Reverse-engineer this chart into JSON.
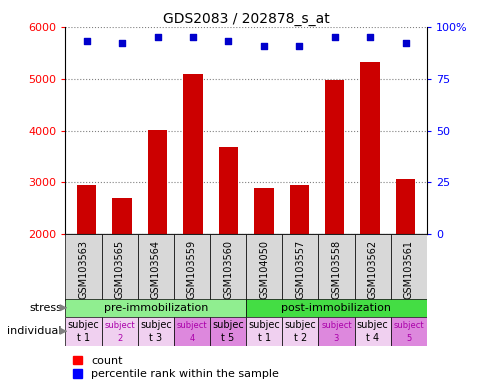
{
  "title": "GDS2083 / 202878_s_at",
  "samples": [
    "GSM103563",
    "GSM103565",
    "GSM103564",
    "GSM103559",
    "GSM103560",
    "GSM104050",
    "GSM103557",
    "GSM103558",
    "GSM103562",
    "GSM103561"
  ],
  "counts": [
    2950,
    2700,
    4020,
    5100,
    3680,
    2900,
    2950,
    4980,
    5330,
    3060
  ],
  "percentile_ranks": [
    93,
    92,
    95,
    95,
    93,
    91,
    91,
    95,
    95,
    92
  ],
  "ylim_left": [
    2000,
    6000
  ],
  "ylim_right": [
    0,
    100
  ],
  "yticks_left": [
    2000,
    3000,
    4000,
    5000,
    6000
  ],
  "yticks_right": [
    0,
    25,
    50,
    75,
    100
  ],
  "yticklabels_right": [
    "0",
    "25",
    "50",
    "75",
    "100%"
  ],
  "bar_color": "#cc0000",
  "dot_color": "#0000cc",
  "stress_groups": [
    {
      "label": "pre-immobilization",
      "start": 0,
      "end": 5,
      "color": "#90ee90"
    },
    {
      "label": "post-immobilization",
      "start": 5,
      "end": 10,
      "color": "#44dd44"
    }
  ],
  "individual_labels_line1": [
    "subjec",
    "subject",
    "subjec",
    "subject",
    "subjec",
    "subjec",
    "subjec",
    "subject",
    "subjec",
    "subject"
  ],
  "individual_labels_line2": [
    "t 1",
    "2",
    "t 3",
    "4",
    "t 5",
    "t 1",
    "t 2",
    "3",
    "t 4",
    "5"
  ],
  "individual_colors": [
    "#f0d0f0",
    "#f0d0f0",
    "#f0d0f0",
    "#dd88dd",
    "#dd88dd",
    "#f0d0f0",
    "#f0d0f0",
    "#dd88dd",
    "#f0d0f0",
    "#dd88dd"
  ],
  "individual_text_size_large": 7,
  "individual_text_size_small": 6,
  "large_indices": [
    0,
    2,
    4,
    5,
    6,
    8
  ],
  "small_indices": [
    1,
    3,
    7,
    9
  ],
  "bar_width": 0.55,
  "n": 10
}
